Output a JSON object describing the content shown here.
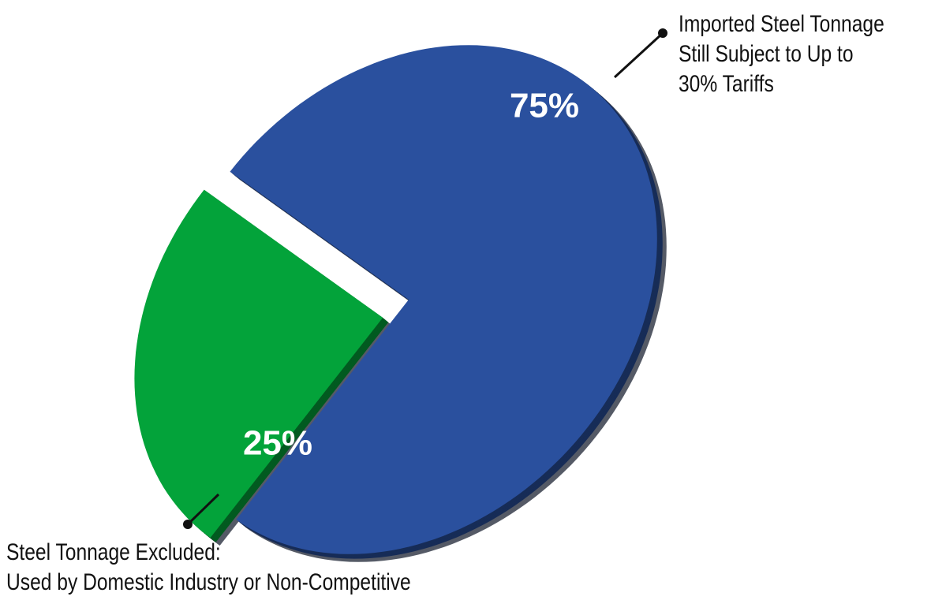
{
  "chart_data": {
    "type": "pie",
    "title": "",
    "slices": [
      {
        "value": 75,
        "data_label": "75%",
        "color": "#2a509e",
        "exploded": false,
        "callout": [
          "Imported Steel Tonnage",
          "Still Subject to Up to",
          "30% Tariffs"
        ]
      },
      {
        "value": 25,
        "data_label": "25%",
        "color": "#03a33a",
        "exploded": true,
        "callout": [
          "Steel Tonnage Excluded:",
          "Used by Domestic Industry or Non-Competitive"
        ]
      }
    ],
    "legend": "none (leader-line callouts)",
    "style": "3d-tilted"
  }
}
